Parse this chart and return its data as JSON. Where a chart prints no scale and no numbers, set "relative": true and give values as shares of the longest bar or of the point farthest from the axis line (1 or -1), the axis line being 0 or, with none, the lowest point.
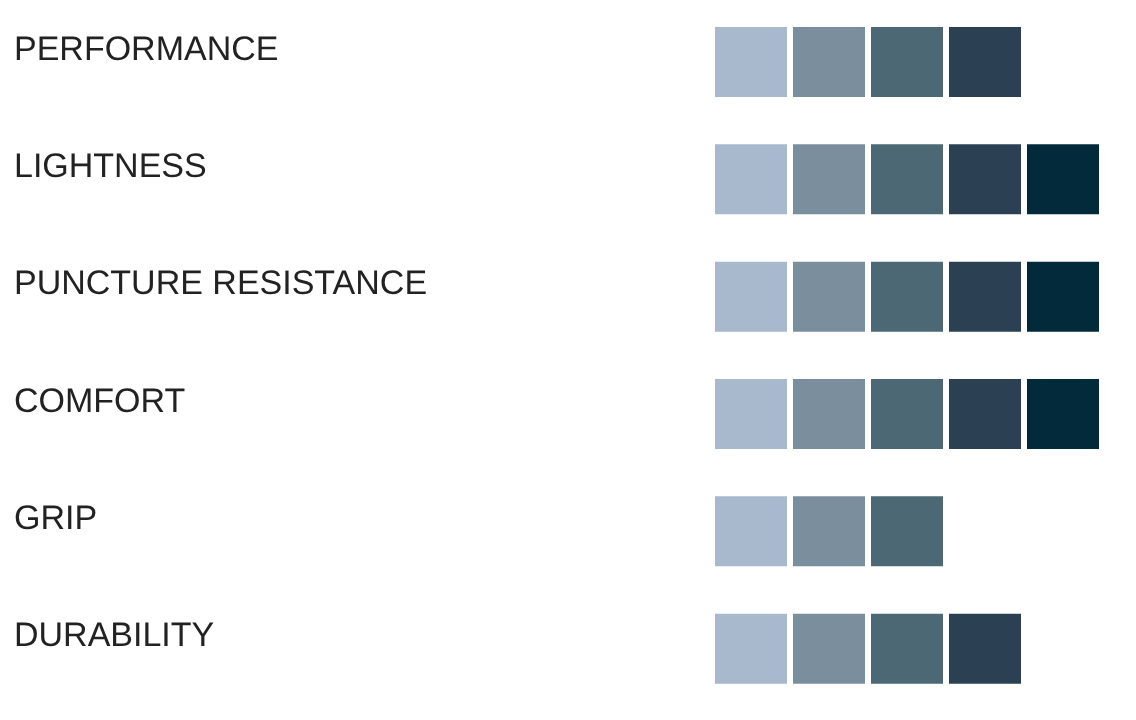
{
  "chart_data": {
    "type": "bar",
    "orientation": "horizontal",
    "stacked": true,
    "relative": true,
    "categories": [
      "PERFORMANCE",
      "LIGHTNESS",
      "PUNCTURE RESISTANCE",
      "COMFORT",
      "GRIP",
      "DURABILITY"
    ],
    "series": [
      {
        "color": "#a9b9cd",
        "values": [
          0.2,
          0.2,
          0.2,
          0.2,
          0.2,
          0.2
        ]
      },
      {
        "color": "#7a8e9e",
        "values": [
          0.2,
          0.2,
          0.2,
          0.2,
          0.2,
          0.2
        ]
      },
      {
        "color": "#4b6874",
        "values": [
          0.2,
          0.2,
          0.2,
          0.2,
          0.2,
          0.2
        ]
      },
      {
        "color": "#2b4153",
        "values": [
          0.2,
          0.2,
          0.2,
          0.2,
          null,
          0.2
        ]
      },
      {
        "color": "#032a3b",
        "values": [
          null,
          0.2,
          0.2,
          0.2,
          null,
          null
        ]
      }
    ]
  }
}
